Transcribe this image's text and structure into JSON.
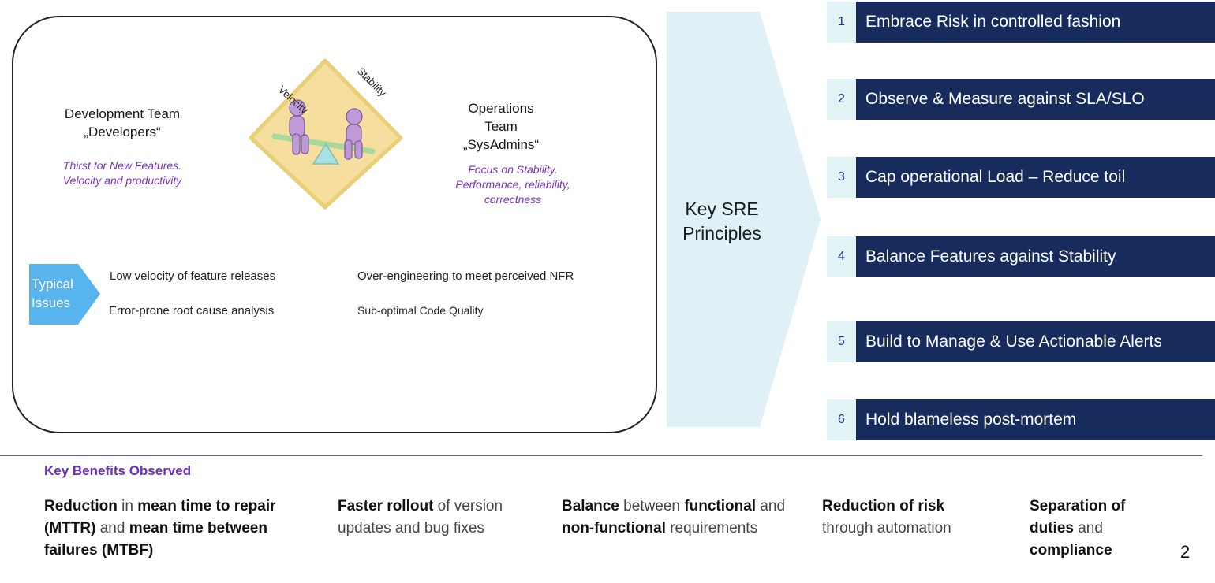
{
  "teams": {
    "dev": {
      "title_line1": "Development Team",
      "title_line2": "„Developers“",
      "desc_line1": "Thirst for New Features.",
      "desc_line2": "Velocity and productivity"
    },
    "ops": {
      "title_line1": "Operations",
      "title_line2": "Team",
      "title_line3": "„SysAdmins“",
      "desc_line1": "Focus on Stability.",
      "desc_line2": "Performance, reliability,",
      "desc_line3": "correctness"
    },
    "seesaw": {
      "velocity_label": "Velocity",
      "stability_label": "Stability"
    }
  },
  "typical_issues": {
    "label_line1": "Typical",
    "label_line2": "Issues",
    "items": [
      "Low velocity of feature releases",
      "Over-engineering to meet perceived NFR",
      "Error-prone root cause analysis",
      "Sub-optimal Code Quality"
    ]
  },
  "key_sre": {
    "line1": "Key SRE",
    "line2": "Principles"
  },
  "principles": [
    {
      "num": "1",
      "label": "Embrace Risk in controlled fashion"
    },
    {
      "num": "2",
      "label": "Observe & Measure against SLA/SLO"
    },
    {
      "num": "3",
      "label": "Cap operational Load – Reduce toil"
    },
    {
      "num": "4",
      "label": "Balance Features against Stability"
    },
    {
      "num": "5",
      "label": "Build to Manage & Use Actionable Alerts"
    },
    {
      "num": "6",
      "label": "Hold blameless post-mortem"
    }
  ],
  "benefits": {
    "title": "Key Benefits Observed",
    "b1": {
      "p1": "Reduction",
      "p2": " in ",
      "p3": "mean time to repair (MTTR)",
      "p4": " and ",
      "p5": "mean time between failures (MTBF)"
    },
    "b2": {
      "p1": "Faster rollout",
      "p2": " of version updates and bug fixes"
    },
    "b3": {
      "p1": "Balance",
      "p2": " between ",
      "p3": "functional",
      "p4": " and ",
      "p5": "non-functional",
      "p6": " requirements"
    },
    "b4": {
      "p1": "Reduction of risk",
      "p2": " through automation"
    },
    "b5": {
      "p1": "Separation of duties",
      "p2": " and ",
      "p3": "compliance"
    }
  },
  "page_number": "2",
  "colors": {
    "navy": "#172b5c",
    "teal_light": "#e1f3f5",
    "purple": "#7a35c0",
    "chevron": "#dff0f6",
    "issues_blue": "#58b4ec"
  }
}
